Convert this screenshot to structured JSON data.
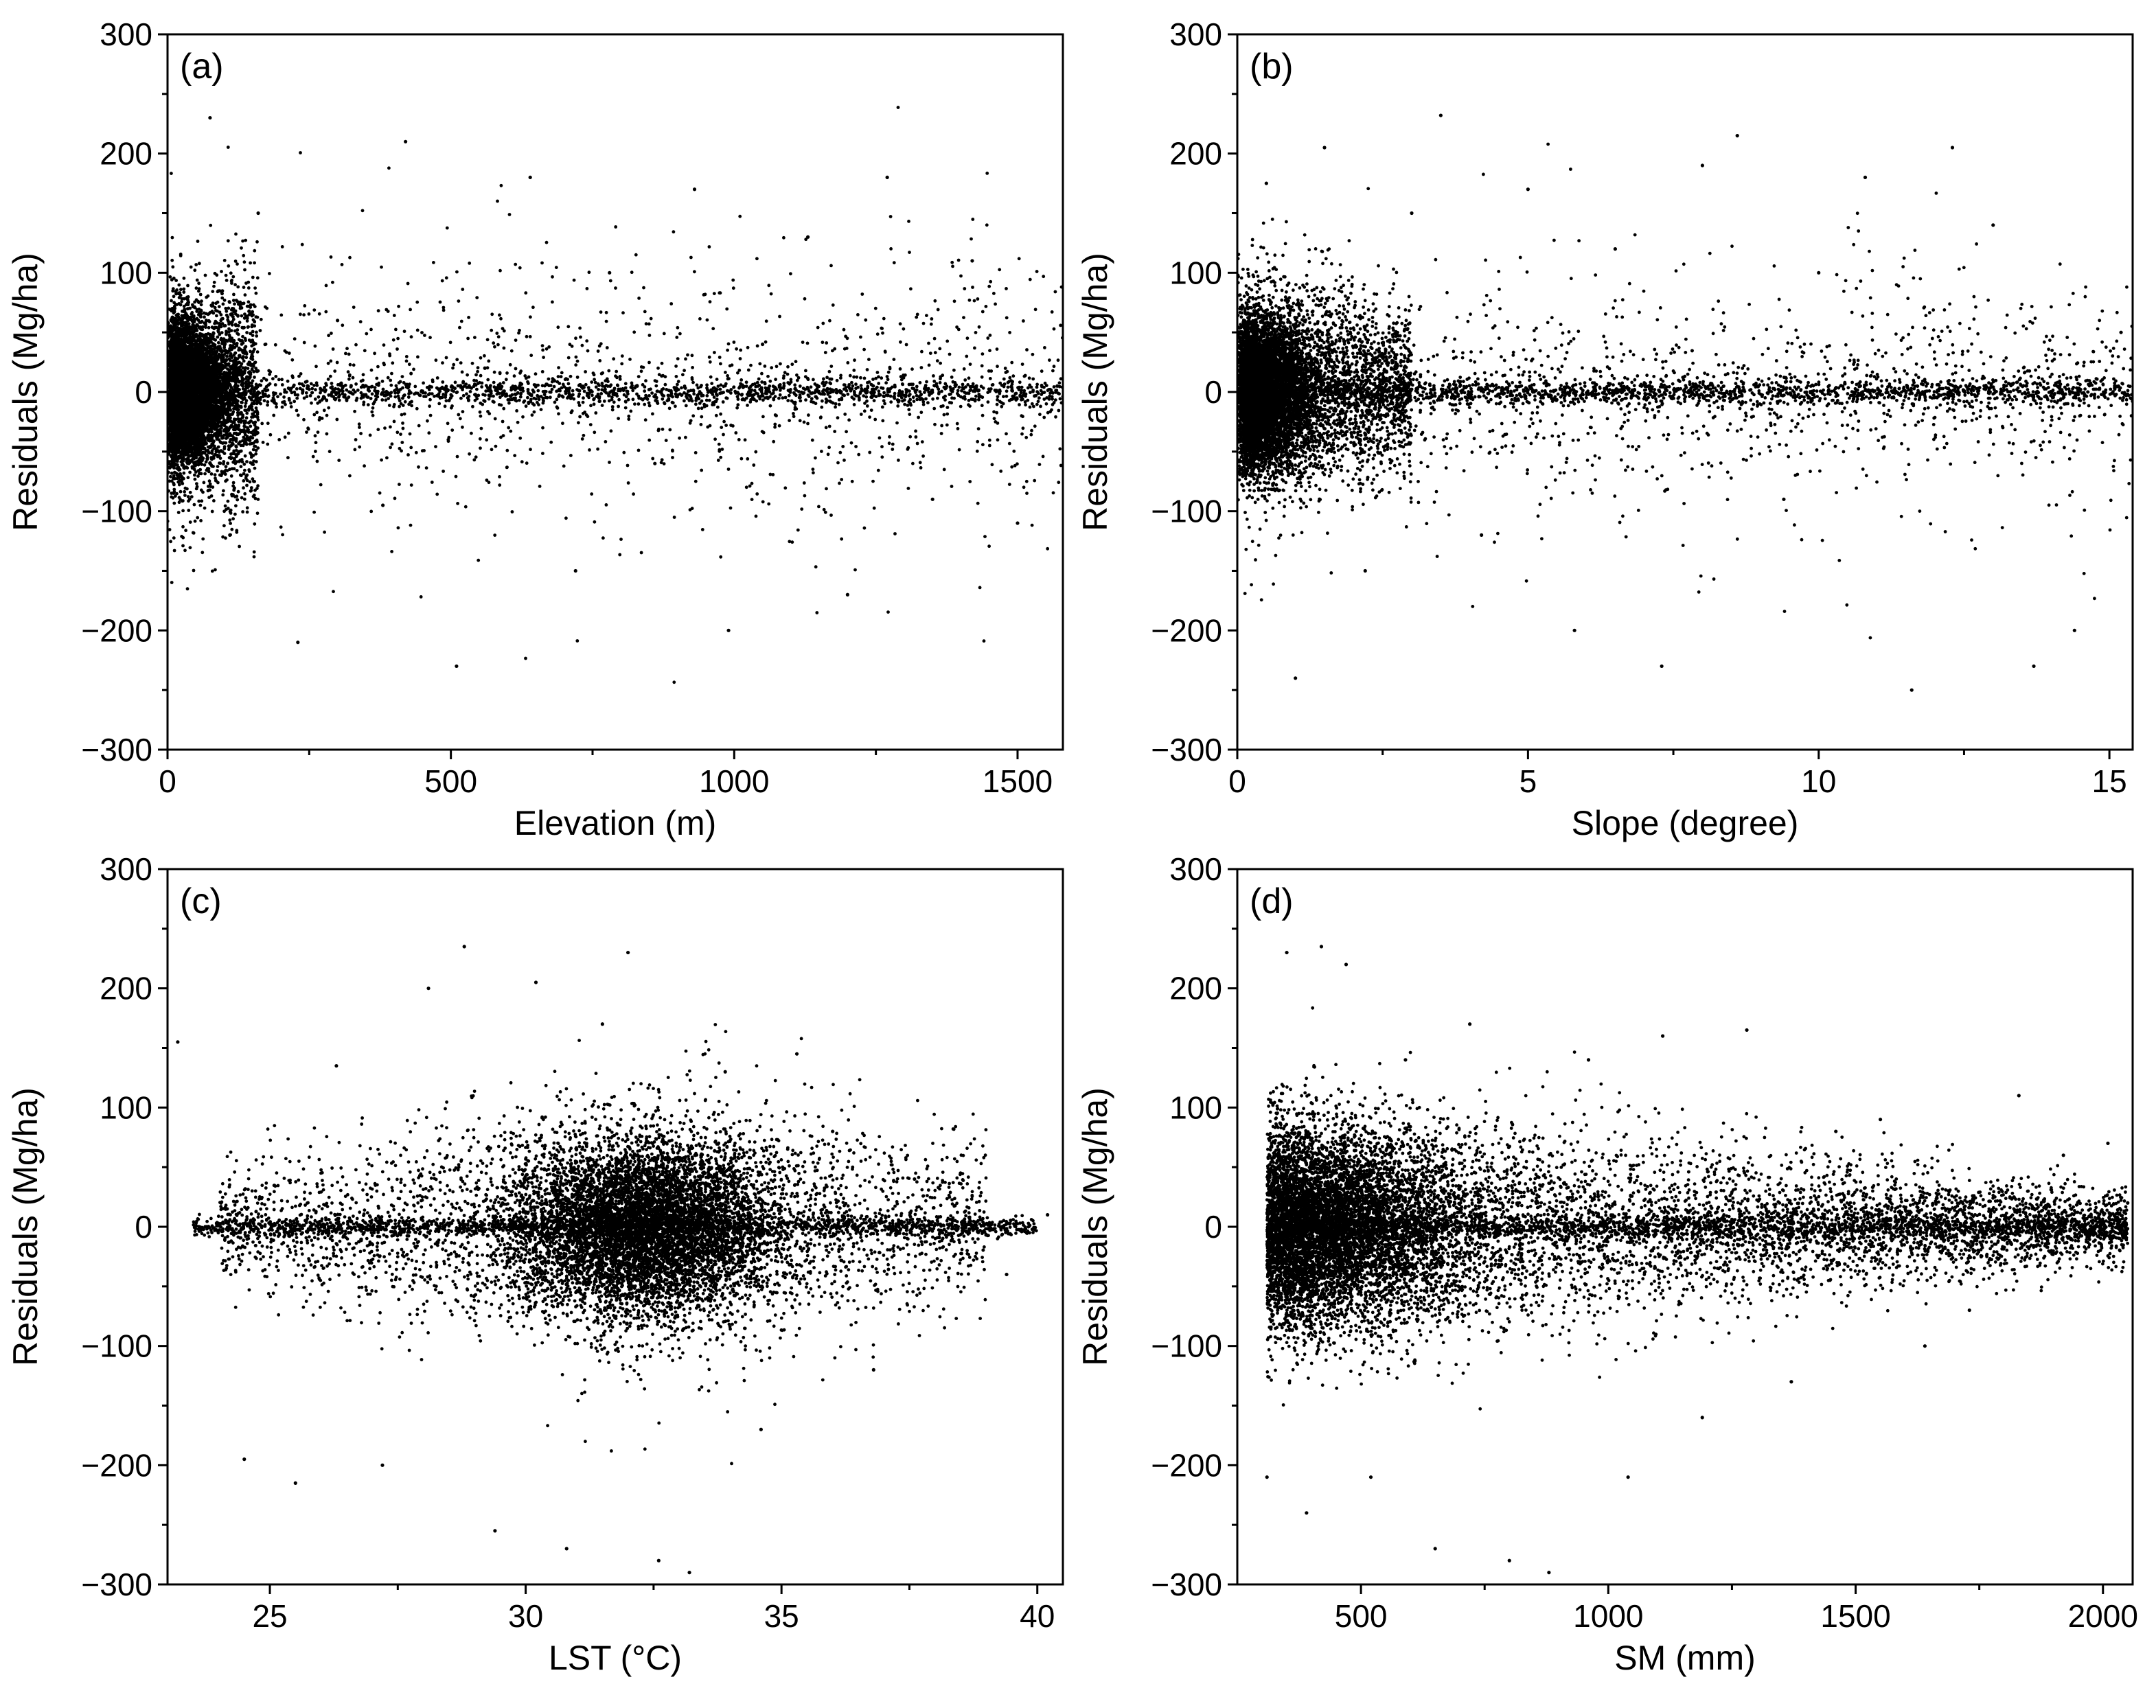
{
  "chart_data": [
    {
      "type": "scatter",
      "panel_label": "(a)",
      "xlabel": "Elevation (m)",
      "ylabel": "Residuals (Mg/ha)",
      "xlim": [
        0,
        1580
      ],
      "ylim": [
        -300,
        300
      ],
      "xticks": [
        0,
        500,
        1000,
        1500
      ],
      "xtick_labels": [
        "0",
        "500",
        "1000",
        "1500"
      ],
      "yticks": [
        -300,
        -200,
        -100,
        0,
        100,
        200,
        300
      ],
      "ytick_labels": [
        "−300",
        "−200",
        "−100",
        "0",
        "100",
        "200",
        "300"
      ],
      "distribution": "dense cluster at 0–120 m with residuals mostly within ±60 Mg/ha; sparse points spread to 1580 m with residuals within about ±230 Mg/ha, tightly banded around 0",
      "series": [
        {
          "name": "residuals",
          "x": [
            20,
            45,
            75,
            110,
            160,
            230,
            300,
            380,
            420,
            510,
            560,
            640,
            720,
            780,
            860,
            930,
            990,
            1050,
            1130,
            1200,
            1270,
            1350,
            1420,
            1500,
            1570
          ],
          "y": [
            -40,
            55,
            230,
            -120,
            150,
            -210,
            60,
            -95,
            210,
            -230,
            20,
            180,
            -150,
            100,
            -60,
            170,
            -200,
            40,
            130,
            -170,
            180,
            -90,
            110,
            -110,
            5
          ]
        }
      ]
    },
    {
      "type": "scatter",
      "panel_label": "(b)",
      "xlabel": "Slope (degree)",
      "ylabel": "Residuals (Mg/ha)",
      "xlim": [
        0,
        15.4
      ],
      "ylim": [
        -300,
        300
      ],
      "xticks": [
        0,
        5,
        10,
        15
      ],
      "xtick_labels": [
        "0",
        "5",
        "10",
        "15"
      ],
      "yticks": [
        -300,
        -200,
        -100,
        0,
        100,
        200,
        300
      ],
      "ytick_labels": [
        "−300",
        "−200",
        "−100",
        "0",
        "100",
        "200",
        "300"
      ],
      "distribution": "dense cluster at 0–2 degrees, spread decreasing with slope; points extend to about 15.4 degrees",
      "series": [
        {
          "name": "residuals",
          "x": [
            0.2,
            0.5,
            1.0,
            1.5,
            2.2,
            3.0,
            3.5,
            4.2,
            5.0,
            5.8,
            6.5,
            7.3,
            8.0,
            8.6,
            9.4,
            10.0,
            10.8,
            11.6,
            12.3,
            13.0,
            13.7,
            14.4,
            15.2
          ],
          "y": [
            -30,
            175,
            -240,
            205,
            -150,
            150,
            232,
            -120,
            170,
            -200,
            120,
            -230,
            190,
            215,
            -90,
            100,
            180,
            -250,
            205,
            140,
            -230,
            -200,
            50
          ]
        }
      ]
    },
    {
      "type": "scatter",
      "panel_label": "(c)",
      "xlabel": "LST (°C)",
      "ylabel": "Residuals (Mg/ha)",
      "xlim": [
        23,
        40.5
      ],
      "ylim": [
        -300,
        300
      ],
      "xticks": [
        25,
        30,
        35,
        40
      ],
      "xtick_labels": [
        "25",
        "30",
        "35",
        "40"
      ],
      "yticks": [
        -300,
        -200,
        -100,
        0,
        100,
        200,
        300
      ],
      "ytick_labels": [
        "−300",
        "−200",
        "−100",
        "0",
        "100",
        "200",
        "300"
      ],
      "distribution": "diamond-shaped cloud peaking in density near 32–33 °C; thin band along 0 from 23.5 to 40 °C",
      "series": [
        {
          "name": "residuals",
          "x": [
            23.2,
            24.5,
            25.5,
            26.3,
            27.2,
            28.1,
            28.8,
            29.4,
            30.2,
            30.8,
            31.5,
            32.0,
            32.6,
            33.2,
            33.9,
            34.6,
            35.3,
            36.0,
            36.8,
            37.6,
            38.5,
            39.4,
            40.2
          ],
          "y": [
            155,
            -195,
            -215,
            135,
            -200,
            200,
            235,
            -255,
            205,
            -270,
            170,
            230,
            -280,
            -290,
            130,
            -170,
            145,
            80,
            -120,
            40,
            45,
            -40,
            10
          ]
        }
      ]
    },
    {
      "type": "scatter",
      "panel_label": "(d)",
      "xlabel": "SM (mm)",
      "ylabel": "Residuals (Mg/ha)",
      "xlim": [
        250,
        2060
      ],
      "ylim": [
        -300,
        300
      ],
      "xticks": [
        500,
        1000,
        1500,
        2000
      ],
      "xtick_labels": [
        "500",
        "1000",
        "1500",
        "2000"
      ],
      "yticks": [
        -300,
        -200,
        -100,
        0,
        100,
        200,
        300
      ],
      "ytick_labels": [
        "−300",
        "−200",
        "−100",
        "0",
        "100",
        "200",
        "300"
      ],
      "distribution": "dense, widely spread cloud at 300–500 mm; spread narrows steadily toward 2050 mm",
      "series": [
        {
          "name": "residuals",
          "x": [
            310,
            350,
            390,
            420,
            470,
            520,
            590,
            650,
            720,
            800,
            880,
            960,
            1040,
            1110,
            1190,
            1280,
            1370,
            1460,
            1550,
            1640,
            1730,
            1830,
            1920,
            2010,
            2050
          ],
          "y": [
            -210,
            230,
            -240,
            235,
            220,
            -210,
            140,
            -270,
            170,
            -280,
            -290,
            140,
            -210,
            160,
            -160,
            165,
            -130,
            80,
            90,
            -100,
            -70,
            110,
            60,
            70,
            20
          ]
        }
      ]
    }
  ]
}
